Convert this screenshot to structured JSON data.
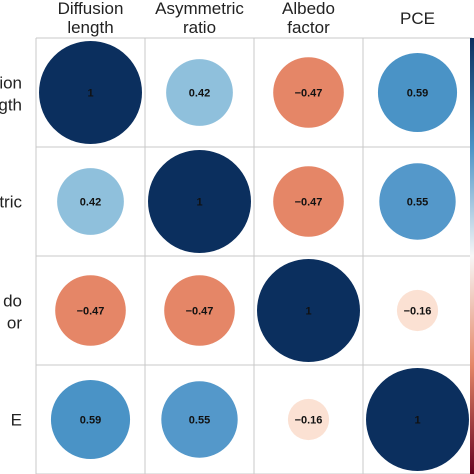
{
  "chart_data": {
    "type": "correlogram",
    "title": "",
    "variables_columns": [
      [
        "Diffusion",
        "length"
      ],
      [
        "Asymmetric",
        "ratio"
      ],
      [
        "Albedo",
        "factor"
      ],
      [
        "PCE"
      ]
    ],
    "variables_rows": [
      [
        "sion",
        "gth"
      ],
      [
        "etric"
      ],
      [
        "do",
        "or"
      ],
      [
        "E"
      ]
    ],
    "matrix": [
      [
        1,
        0.42,
        -0.47,
        0.59
      ],
      [
        0.42,
        1,
        -0.47,
        0.55
      ],
      [
        -0.47,
        -0.47,
        1,
        -0.16
      ],
      [
        0.59,
        0.55,
        -0.16,
        1
      ]
    ],
    "value_labels": [
      [
        "1",
        "0.42",
        "−0.47",
        "0.59"
      ],
      [
        "0.42",
        "1",
        "−0.47",
        "0.55"
      ],
      [
        "−0.47",
        "−0.47",
        "1",
        "−0.16"
      ],
      [
        "0.59",
        "0.55",
        "−0.16",
        "1"
      ]
    ],
    "range": [
      -1,
      1
    ],
    "colors": {
      "1": "#0b2f5e",
      "0.59": "#4a93c6",
      "0.55": "#5498ca",
      "0.42": "#8fc0dc",
      "-0.16": "#fbe1d3",
      "-0.47": "#e58667"
    },
    "grid": true,
    "legend": "right"
  }
}
